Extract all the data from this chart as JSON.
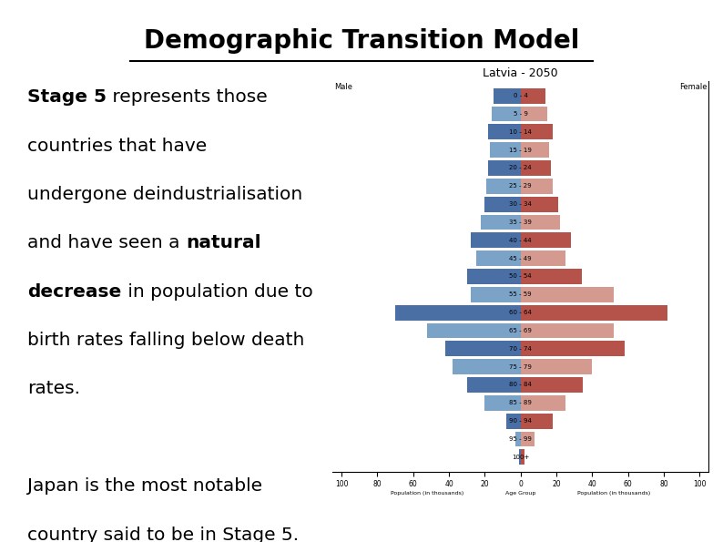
{
  "title": "Demographic Transition Model",
  "background_color": "#ffffff",
  "title_fontsize": 20,
  "text_fontsize": 14.5,
  "pyramid_title": "Latvia - 2050",
  "male_label": "Male",
  "female_label": "Female",
  "xlabel_left": "Population (in thousands)",
  "xlabel_center": "Age Group",
  "xlabel_right": "Population (in thousands)",
  "age_groups": [
    "100+",
    "95 - 99",
    "90 - 94",
    "85 - 89",
    "80 - 84",
    "75 - 79",
    "70 - 74",
    "65 - 69",
    "60 - 64",
    "55 - 59",
    "50 - 54",
    "45 - 49",
    "40 - 44",
    "35 - 39",
    "30 - 34",
    "25 - 29",
    "20 - 24",
    "15 - 19",
    "10 - 14",
    "5 - 9",
    "0 - 4"
  ],
  "male_values": [
    1,
    3,
    8,
    20,
    30,
    38,
    42,
    52,
    70,
    28,
    30,
    25,
    28,
    22,
    20,
    19,
    18,
    17,
    18,
    16,
    15
  ],
  "female_values": [
    2,
    8,
    18,
    25,
    35,
    40,
    58,
    52,
    82,
    52,
    34,
    25,
    28,
    22,
    21,
    18,
    17,
    16,
    18,
    15,
    14
  ],
  "male_color_dark": "#4a6fa5",
  "male_color_light": "#7ba3c8",
  "female_color_dark": "#b5534a",
  "female_color_light": "#d4998f"
}
